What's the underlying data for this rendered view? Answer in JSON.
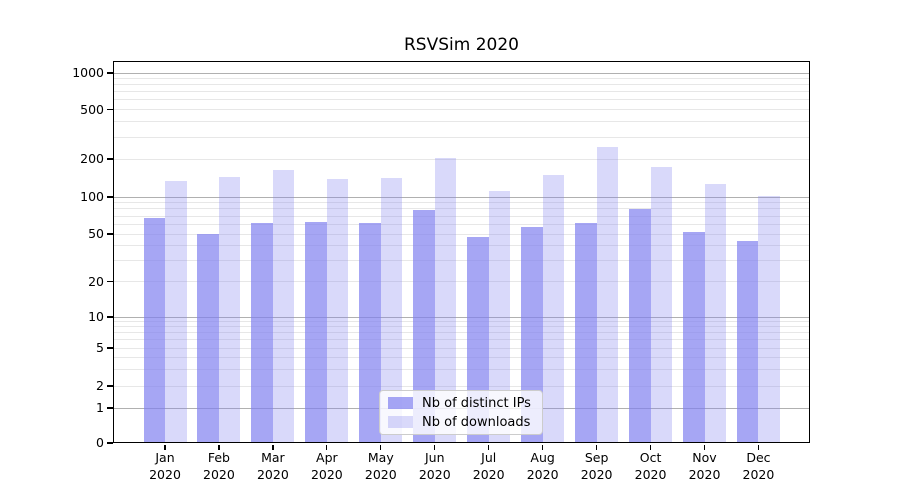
{
  "chart_data": {
    "type": "bar",
    "title": "RSVSim 2020",
    "categories": [
      "Jan",
      "Feb",
      "Mar",
      "Apr",
      "May",
      "Jun",
      "Jul",
      "Aug",
      "Sep",
      "Oct",
      "Nov",
      "Dec"
    ],
    "x_year_label": "2020",
    "series": [
      {
        "name": "Nb of distinct IPs",
        "color": "rgba(128,128,240,0.7)",
        "values": [
          68,
          50,
          61,
          63,
          62,
          79,
          47,
          57,
          62,
          80,
          52,
          44
        ]
      },
      {
        "name": "Nb of downloads",
        "color": "rgba(128,128,240,0.3)",
        "values": [
          135,
          143,
          165,
          139,
          142,
          204,
          111,
          150,
          249,
          174,
          127,
          101
        ]
      }
    ],
    "yscale": "symlog",
    "y_ticks": [
      0,
      1,
      2,
      5,
      10,
      20,
      50,
      100,
      200,
      500,
      1000
    ],
    "y_tick_labels": [
      "0",
      "1",
      "2",
      "5",
      "10",
      "20",
      "50",
      "100",
      "200",
      "500",
      "1000"
    ],
    "ylim": [
      0,
      1250
    ],
    "xlabel": "",
    "ylabel": "",
    "grid": true,
    "legend_position": "lower center",
    "colors": {
      "bar_base": "#8080f0",
      "grid_major": "#b0b0b0",
      "grid_minor": "#e7e7e7",
      "axis": "#000000",
      "background": "#ffffff"
    }
  }
}
